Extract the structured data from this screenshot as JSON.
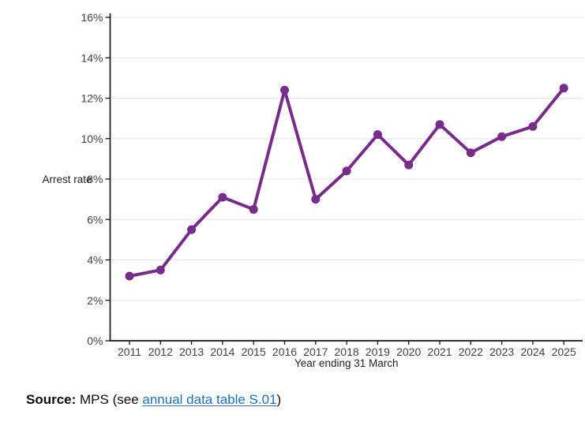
{
  "chart_data": {
    "type": "line",
    "title": "",
    "categories": [
      "2011",
      "2012",
      "2013",
      "2014",
      "2015",
      "2016",
      "2017",
      "2018",
      "2019",
      "2020",
      "2021",
      "2022",
      "2023",
      "2024",
      "2025"
    ],
    "values": [
      3.2,
      3.5,
      5.5,
      7.1,
      6.5,
      12.4,
      7.0,
      8.4,
      10.2,
      8.7,
      10.7,
      9.3,
      10.1,
      10.6,
      12.5
    ],
    "xlabel": "Year ending 31 March",
    "ylabel": "Arrest rate",
    "ylim": [
      0,
      16
    ],
    "ytick_interval": 2,
    "ytick_labels": [
      "0%",
      "2%",
      "4%",
      "6%",
      "8%",
      "10%",
      "12%",
      "14%",
      "16%"
    ],
    "ytick_suffix": "%",
    "grid": "horizontal",
    "legend": false,
    "marker": "circle",
    "line_color": "#772c8b",
    "grid_color": "#e4e4e4",
    "axis_color": "#161616",
    "tick_label_color": "#414141",
    "axis_title_color": "#222222"
  },
  "source": {
    "label": "Source:",
    "pre_link": " MPS (see ",
    "link_text": "annual data table S.01",
    "post_link": ")",
    "link_color": "#1d70b8"
  }
}
